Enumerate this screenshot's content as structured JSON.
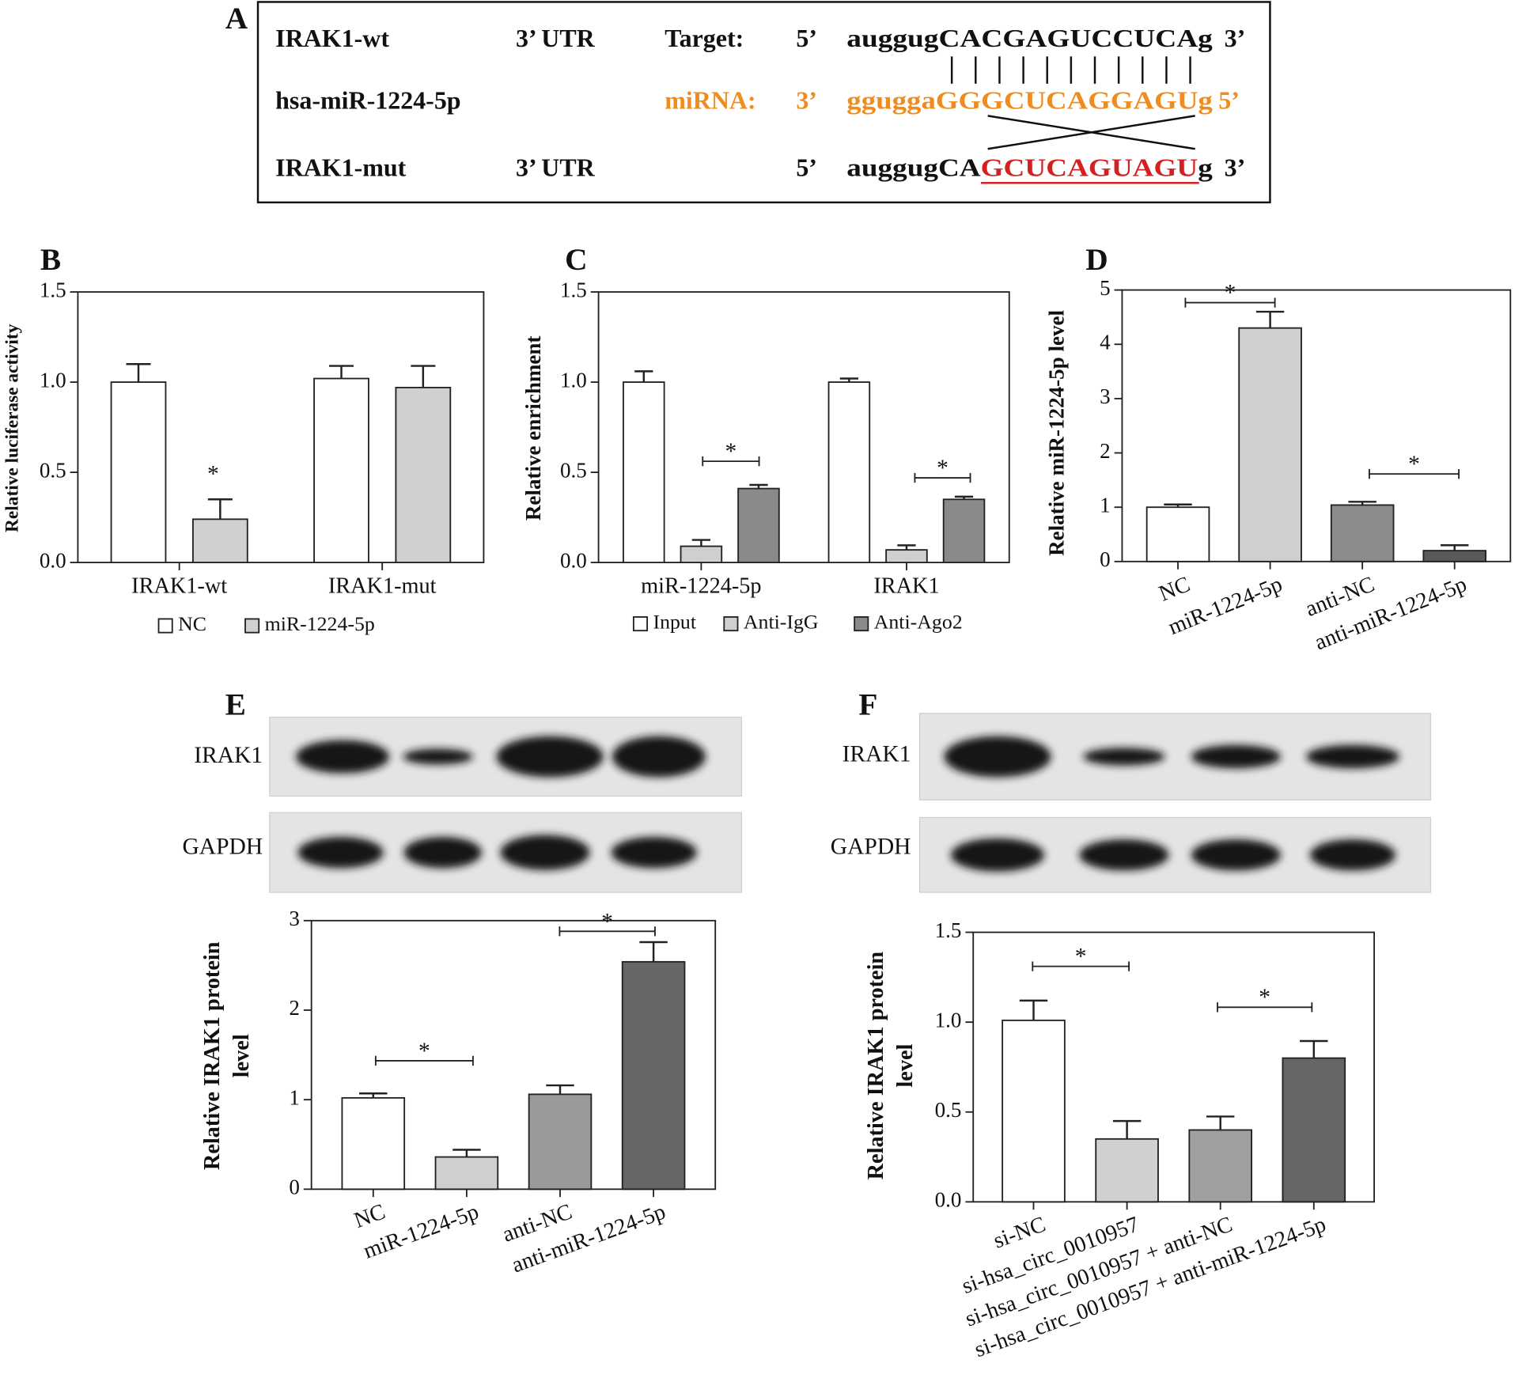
{
  "panel_a": {
    "label": "A",
    "rows": [
      {
        "name": "IRAK1-wt",
        "region": "3’ UTR",
        "role": "Target:",
        "left_end": "5’",
        "sequence": [
          "auggugCACGAGUCCUCAg"
        ],
        "right_end": "3’"
      },
      {
        "name": "hsa-miR-1224-5p",
        "role": "miRNA:",
        "left_end": "3’",
        "sequence": [
          "gguggaGGGCUCAGGAGUg"
        ],
        "right_end": "5’"
      },
      {
        "name": "IRAK1-mut",
        "region": "3’ UTR",
        "left_end": "5’",
        "sequence": [
          "auggugCA",
          "GCUCAGUAGU",
          "g"
        ],
        "right_end": "3’"
      }
    ]
  },
  "blots": [
    {
      "panel_label": "E",
      "rows": [
        "IRAK1",
        "GAPDH"
      ]
    },
    {
      "panel_label": "F",
      "rows": [
        "IRAK1",
        "GAPDH"
      ]
    }
  ],
  "chart_data": [
    {
      "type": "bar",
      "panel_label": "B",
      "ylabel": "Relative luciferase activity",
      "categories": [
        "IRAK1-wt",
        "IRAK1-mut"
      ],
      "series": [
        {
          "name": "NC",
          "color": "#ffffff",
          "values": [
            1.0,
            1.02
          ],
          "errors": [
            0.1,
            0.07
          ]
        },
        {
          "name": "miR-1224-5p",
          "color": "#d0d0d0",
          "values": [
            0.24,
            0.97
          ],
          "errors": [
            0.11,
            0.12
          ]
        }
      ],
      "ylim": [
        0,
        1.5
      ],
      "yticks": [
        {
          "value": 0,
          "label": "0.0"
        },
        0.5,
        {
          "value": 1,
          "label": "1.0"
        },
        1.5
      ],
      "legend": "bottom",
      "annotations": [
        "*"
      ]
    },
    {
      "type": "bar",
      "panel_label": "C",
      "ylabel": "Relative enrichment",
      "categories": [
        "miR-1224-5p",
        "IRAK1"
      ],
      "series": [
        {
          "name": "Input",
          "color": "#ffffff",
          "values": [
            1.0,
            1.0
          ],
          "errors": [
            0.06,
            0.02
          ]
        },
        {
          "name": "Anti-IgG",
          "color": "#cfcfcf",
          "values": [
            0.09,
            0.07
          ],
          "errors": [
            0.035,
            0.025
          ]
        },
        {
          "name": "Anti-Ago2",
          "color": "#8a8a8a",
          "values": [
            0.41,
            0.35
          ],
          "errors": [
            0.02,
            0.015
          ]
        }
      ],
      "ylim": [
        0,
        1.5
      ],
      "yticks": [
        {
          "value": 0,
          "label": "0.0"
        },
        0.5,
        {
          "value": 1,
          "label": "1.0"
        },
        1.5
      ],
      "legend": "bottom",
      "annotations": [
        "*",
        "*"
      ]
    },
    {
      "type": "bar",
      "panel_label": "D",
      "ylabel": "Relative miR-1224-5p level",
      "categories": [
        "NC",
        "miR-1224-5p",
        "anti-NC",
        "anti-miR-1224-5p"
      ],
      "values": [
        1.0,
        4.3,
        1.04,
        0.2
      ],
      "errors": [
        0.05,
        0.3,
        0.06,
        0.1
      ],
      "colors": [
        "#ffffff",
        "#cfcfcf",
        "#8c8c8c",
        "#5a5a5a"
      ],
      "ylim": [
        0,
        5
      ],
      "yticks": [
        0,
        1,
        2,
        3,
        4,
        5
      ],
      "annotations": [
        "*",
        "*"
      ]
    },
    {
      "type": "bar",
      "panel_label": "E",
      "ylabel": [
        "Relative IRAK1 protein",
        "level"
      ],
      "categories": [
        "NC",
        "miR-1224-5p",
        "anti-NC",
        "anti-miR-1224-5p"
      ],
      "values": [
        1.02,
        0.36,
        1.06,
        2.54
      ],
      "errors": [
        0.05,
        0.08,
        0.1,
        0.22
      ],
      "colors": [
        "#ffffff",
        "#cfcfcf",
        "#9a9a9a",
        "#666666"
      ],
      "ylim": [
        0,
        3
      ],
      "yticks": [
        0,
        1,
        2,
        3
      ],
      "annotations": [
        "*",
        "*"
      ]
    },
    {
      "type": "bar",
      "panel_label": "F",
      "ylabel": [
        "Relative IRAK1 protein",
        "level"
      ],
      "categories": [
        "si-NC",
        "si-hsa_circ_0010957",
        "si-hsa_circ_0010957 + anti-NC",
        "si-hsa_circ_0010957 + anti-miR-1224-5p"
      ],
      "values": [
        1.01,
        0.35,
        0.4,
        0.8
      ],
      "errors": [
        0.11,
        0.1,
        0.075,
        0.095
      ],
      "colors": [
        "#ffffff",
        "#d0d0d0",
        "#a0a0a0",
        "#666666"
      ],
      "ylim": [
        0,
        1.5
      ],
      "yticks": [
        {
          "value": 0,
          "label": "0.0"
        },
        0.5,
        {
          "value": 1,
          "label": "1.0"
        },
        1.5
      ],
      "annotations": [
        "*",
        "*"
      ]
    }
  ]
}
